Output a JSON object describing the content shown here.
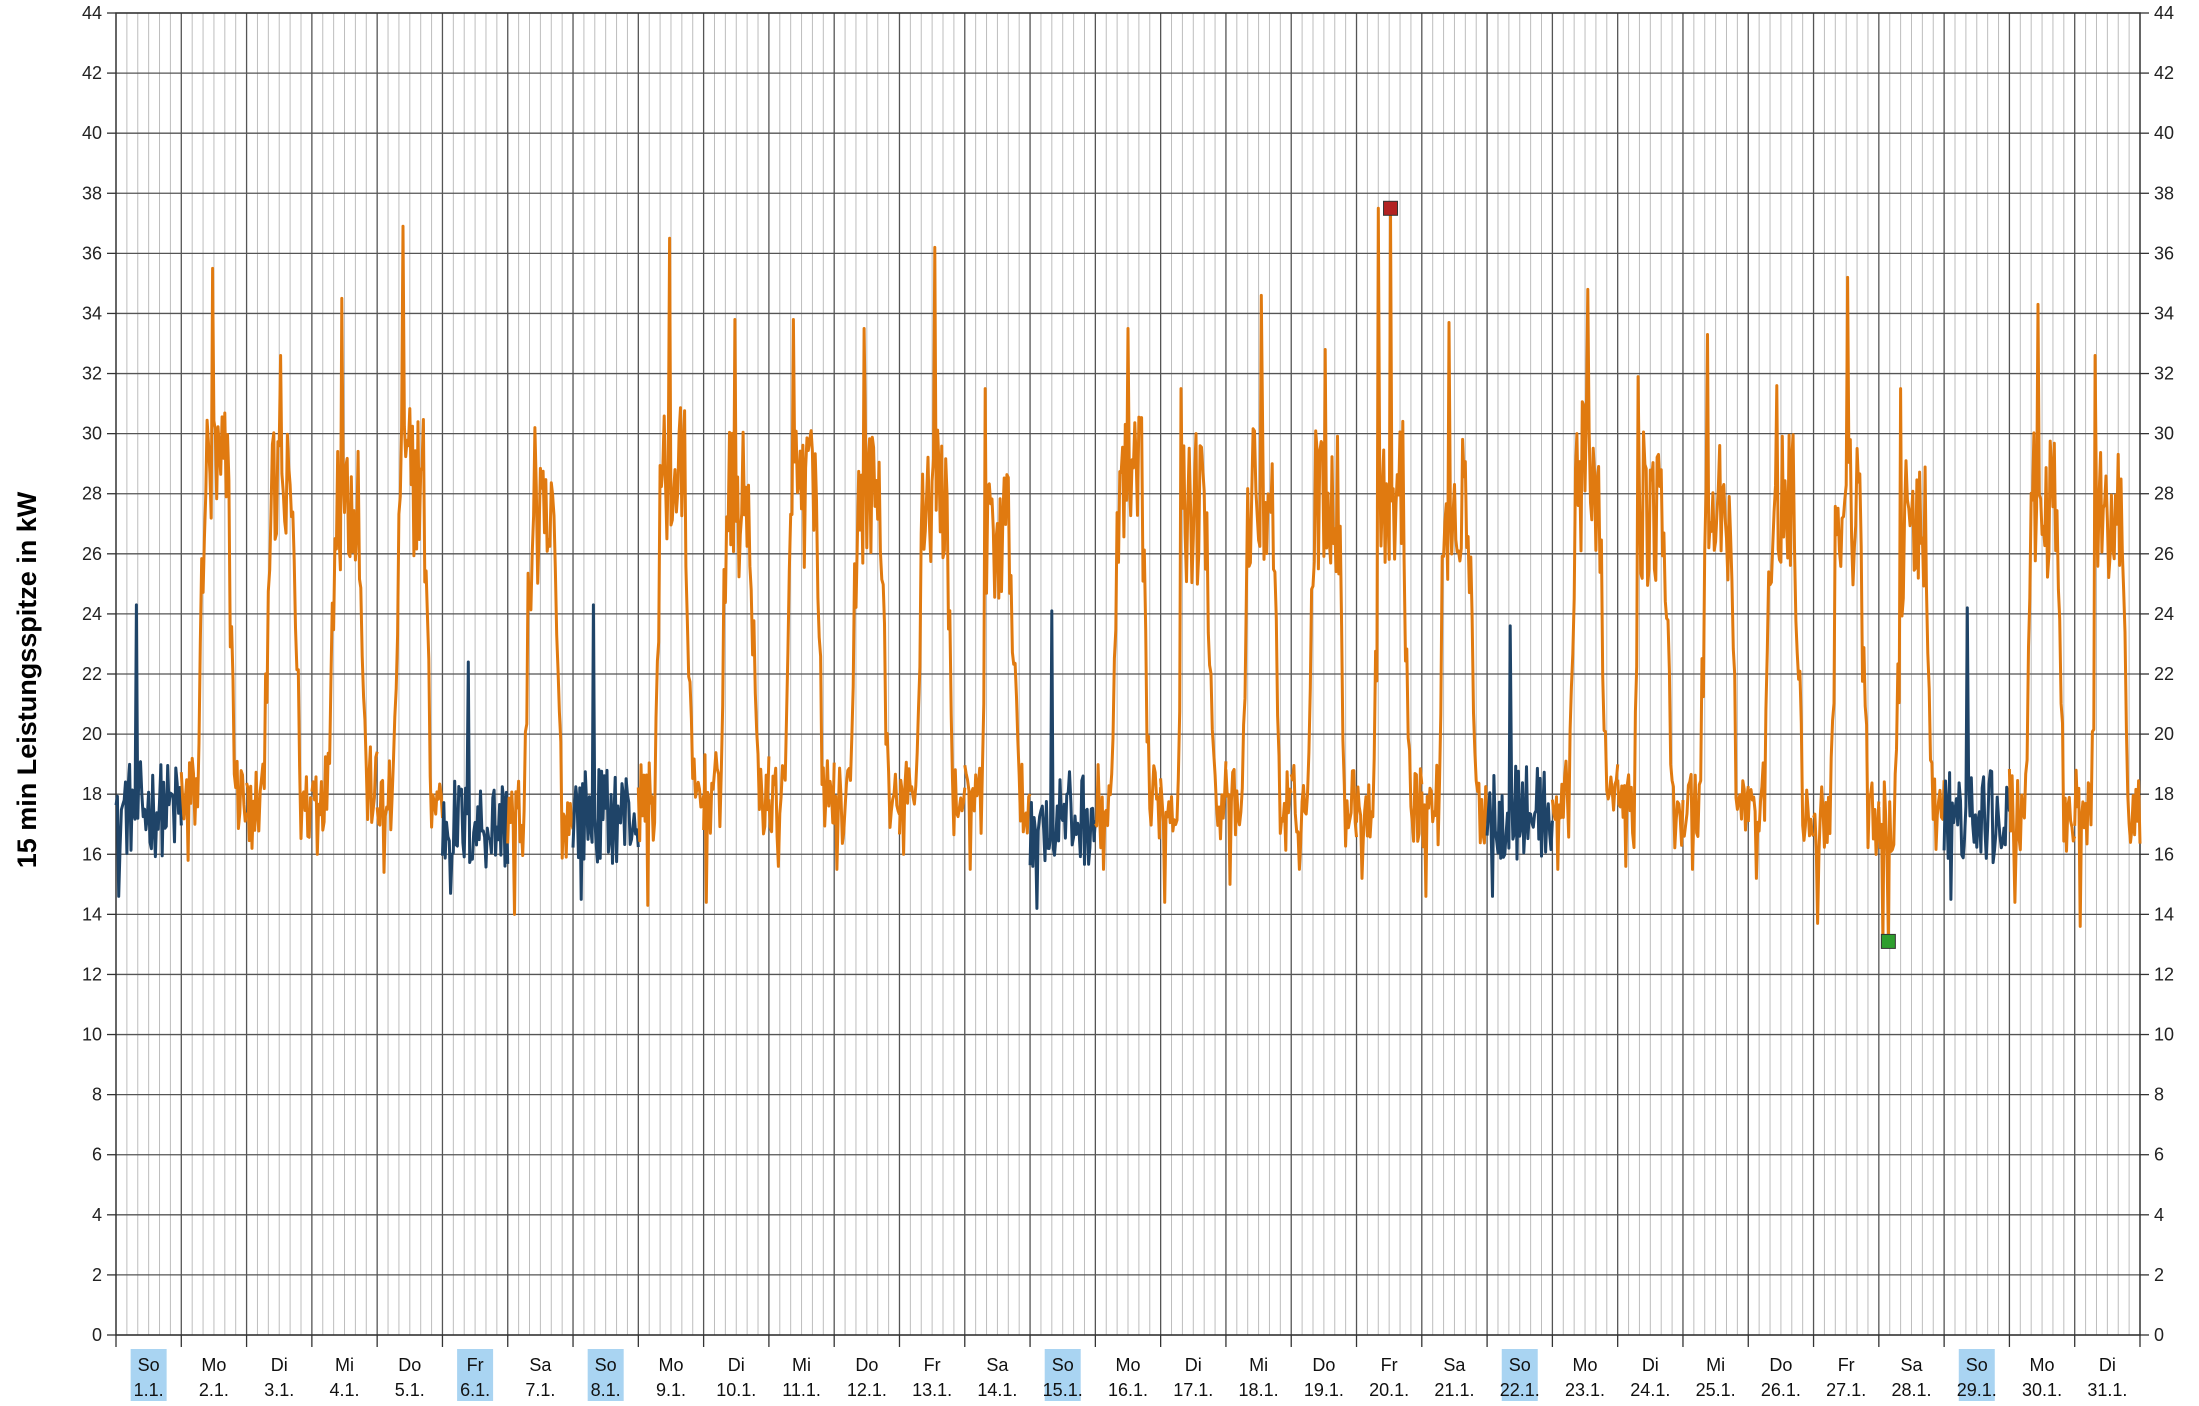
{
  "chart_data": {
    "type": "line",
    "title": "",
    "xlabel": "",
    "ylabel": "15 min Leistungsspitze in kW",
    "ylim": [
      0,
      44
    ],
    "yticks": [
      0,
      2,
      4,
      6,
      8,
      10,
      12,
      14,
      16,
      18,
      20,
      22,
      24,
      26,
      28,
      30,
      32,
      34,
      36,
      38,
      40,
      42,
      44
    ],
    "grid": true,
    "legend": "none",
    "colors": {
      "workday": "#E07A10",
      "holiday": "#1F4468",
      "max_marker": "#B22222",
      "min_marker": "#2E9E2E",
      "holiday_label_bg": "#A9D4F2"
    },
    "days": [
      {
        "wd": "So",
        "date": "1.1.",
        "holiday": true
      },
      {
        "wd": "Mo",
        "date": "2.1.",
        "holiday": false
      },
      {
        "wd": "Di",
        "date": "3.1.",
        "holiday": false
      },
      {
        "wd": "Mi",
        "date": "4.1.",
        "holiday": false
      },
      {
        "wd": "Do",
        "date": "5.1.",
        "holiday": false
      },
      {
        "wd": "Fr",
        "date": "6.1.",
        "holiday": true
      },
      {
        "wd": "Sa",
        "date": "7.1.",
        "holiday": false
      },
      {
        "wd": "So",
        "date": "8.1.",
        "holiday": true
      },
      {
        "wd": "Mo",
        "date": "9.1.",
        "holiday": false
      },
      {
        "wd": "Di",
        "date": "10.1.",
        "holiday": false
      },
      {
        "wd": "Mi",
        "date": "11.1.",
        "holiday": false
      },
      {
        "wd": "Do",
        "date": "12.1.",
        "holiday": false
      },
      {
        "wd": "Fr",
        "date": "13.1.",
        "holiday": false
      },
      {
        "wd": "Sa",
        "date": "14.1.",
        "holiday": false
      },
      {
        "wd": "So",
        "date": "15.1.",
        "holiday": true
      },
      {
        "wd": "Mo",
        "date": "16.1.",
        "holiday": false
      },
      {
        "wd": "Di",
        "date": "17.1.",
        "holiday": false
      },
      {
        "wd": "Mi",
        "date": "18.1.",
        "holiday": false
      },
      {
        "wd": "Do",
        "date": "19.1.",
        "holiday": false
      },
      {
        "wd": "Fr",
        "date": "20.1.",
        "holiday": false
      },
      {
        "wd": "Sa",
        "date": "21.1.",
        "holiday": false
      },
      {
        "wd": "So",
        "date": "22.1.",
        "holiday": true
      },
      {
        "wd": "Mo",
        "date": "23.1.",
        "holiday": false
      },
      {
        "wd": "Di",
        "date": "24.1.",
        "holiday": false
      },
      {
        "wd": "Mi",
        "date": "25.1.",
        "holiday": false
      },
      {
        "wd": "Do",
        "date": "26.1.",
        "holiday": false
      },
      {
        "wd": "Fr",
        "date": "27.1.",
        "holiday": false
      },
      {
        "wd": "Sa",
        "date": "28.1.",
        "holiday": false
      },
      {
        "wd": "So",
        "date": "29.1.",
        "holiday": true
      },
      {
        "wd": "Mo",
        "date": "30.1.",
        "holiday": false
      },
      {
        "wd": "Di",
        "date": "31.1.",
        "holiday": false
      }
    ],
    "series": [
      {
        "role": "daily_profile",
        "peaks_kw": [
          24.3,
          35.5,
          32.6,
          34.5,
          36.9,
          22.4,
          30.2,
          24.3,
          36.5,
          33.8,
          33.8,
          33.5,
          36.2,
          31.5,
          24.1,
          33.5,
          31.5,
          34.6,
          32.8,
          37.5,
          33.7,
          23.6,
          34.8,
          31.9,
          33.3,
          31.6,
          35.2,
          31.5,
          24.2,
          34.3,
          32.6
        ],
        "base_kw": [
          17.5,
          18.0,
          17.6,
          18.2,
          17.8,
          17.0,
          17.2,
          17.3,
          17.8,
          18.0,
          17.9,
          17.5,
          17.8,
          17.6,
          17.2,
          17.6,
          17.8,
          17.5,
          17.6,
          17.8,
          17.6,
          17.4,
          17.8,
          17.6,
          17.6,
          17.7,
          17.2,
          17.3,
          17.2,
          17.5,
          17.4
        ],
        "daytime_level_kw": [
          19.0,
          28.5,
          27.5,
          28.0,
          28.5,
          18.5,
          26.5,
          18.5,
          28.5,
          27.5,
          28.0,
          28.0,
          28.0,
          26.5,
          18.5,
          28.0,
          27.5,
          28.0,
          28.0,
          28.0,
          27.5,
          18.5,
          28.5,
          27.5,
          27.5,
          27.5,
          27.5,
          26.5,
          18.5,
          27.5,
          27.5
        ],
        "min_kw": [
          14.6,
          15.8,
          16.2,
          16.0,
          15.4,
          14.7,
          14.0,
          14.5,
          14.3,
          14.4,
          15.6,
          15.5,
          16.0,
          15.5,
          14.2,
          15.5,
          14.4,
          15.0,
          15.5,
          15.2,
          14.6,
          14.6,
          15.5,
          15.6,
          15.5,
          15.2,
          13.7,
          13.1,
          14.5,
          14.4,
          13.6
        ]
      }
    ],
    "markers": [
      {
        "name": "max",
        "day_index": 19,
        "hour": 12.5,
        "value": 37.5
      },
      {
        "name": "min",
        "day_index": 27,
        "hour": 3.5,
        "value": 13.1
      }
    ]
  }
}
